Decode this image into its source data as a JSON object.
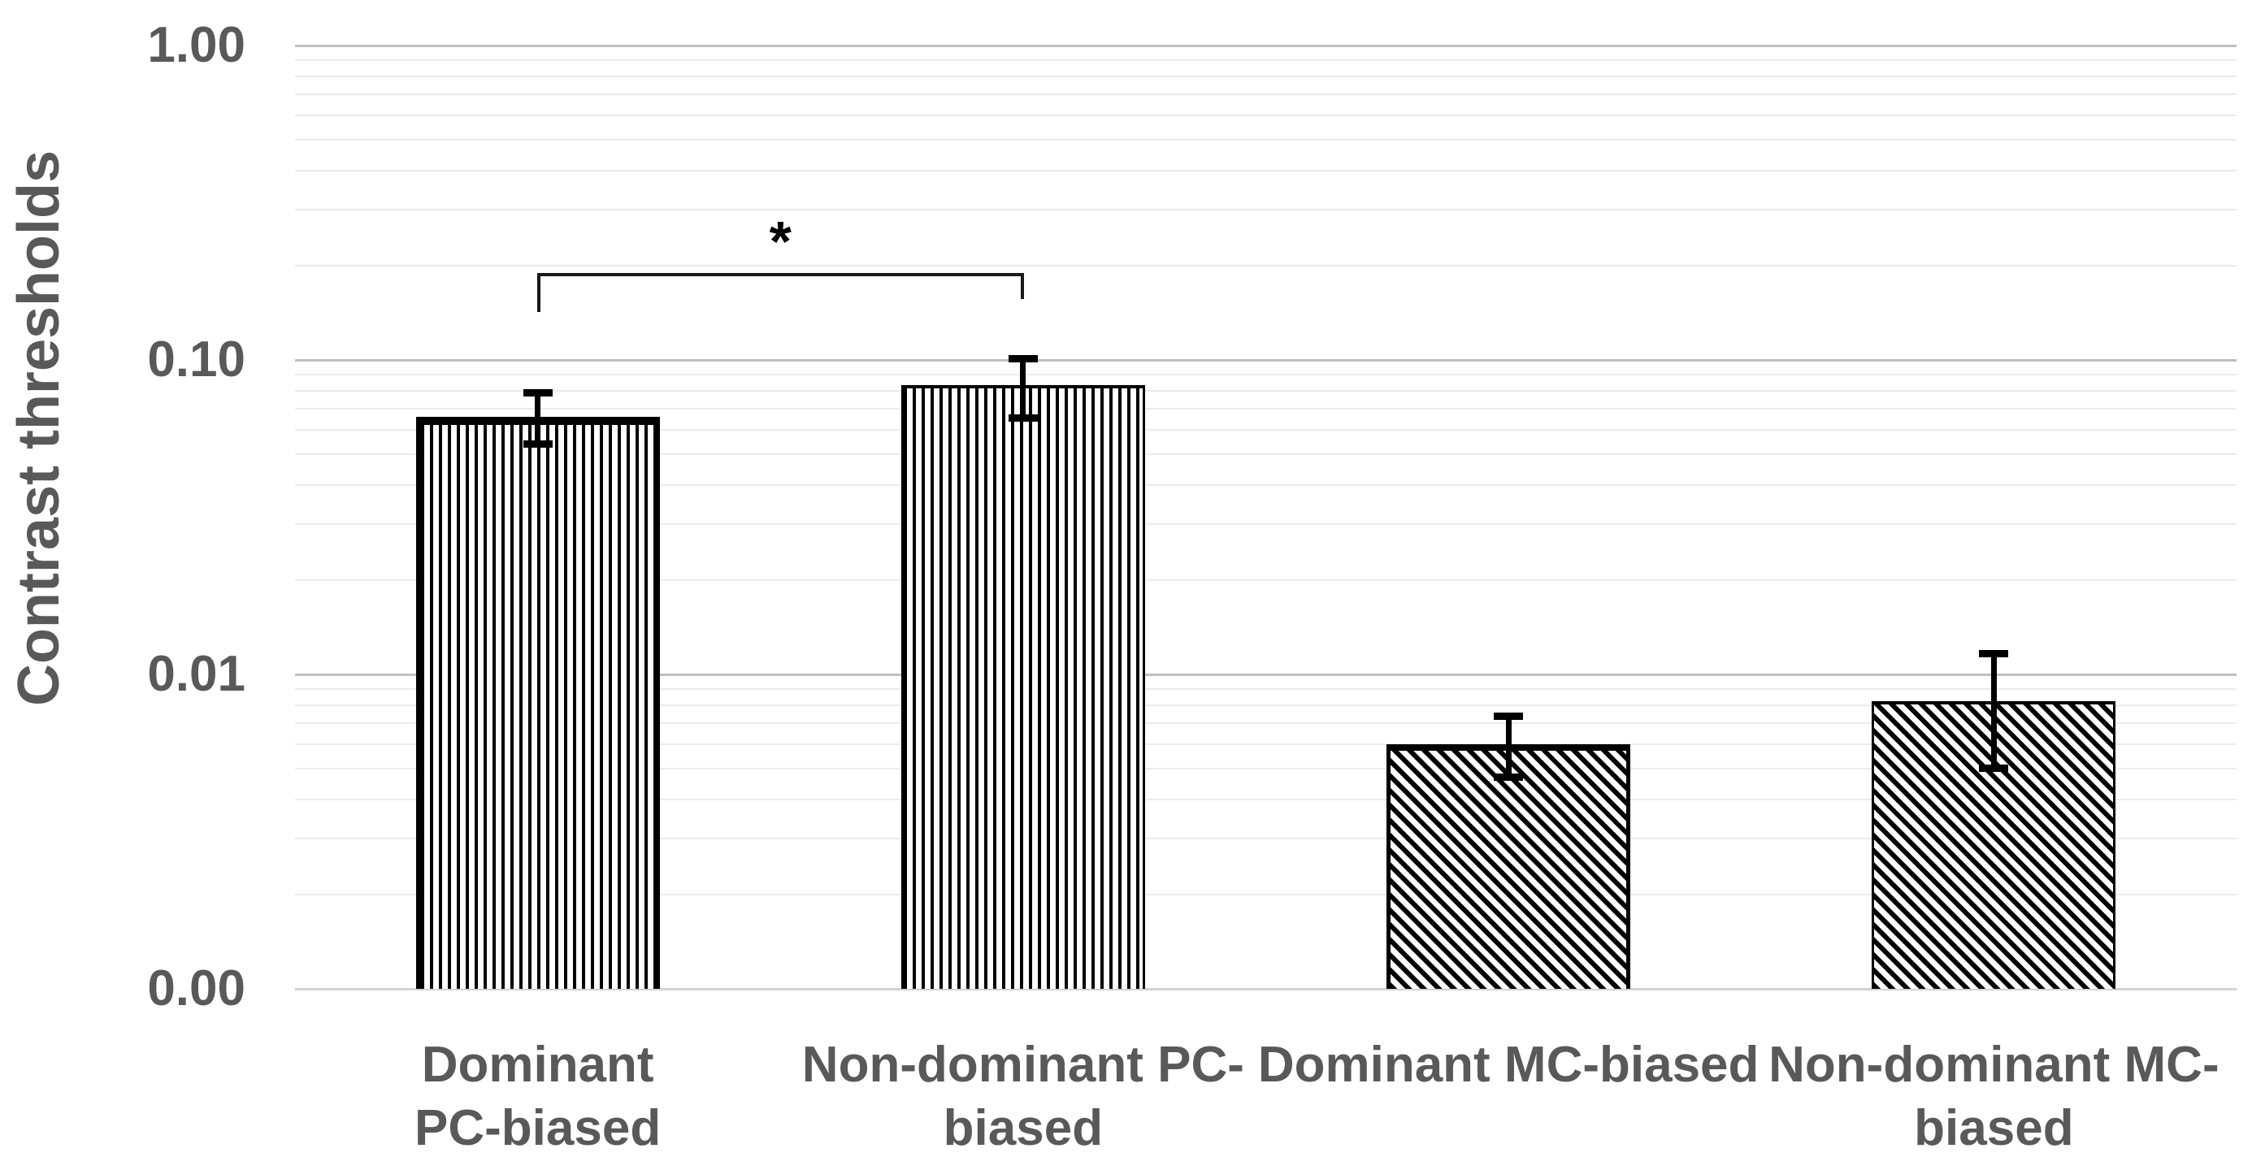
{
  "chart_data": {
    "type": "bar",
    "title": "",
    "ylabel": "Contrast thresholds",
    "xlabel": "",
    "y_axis": {
      "scale": "log",
      "ylim": [
        0.001,
        1.0
      ],
      "ticks": [
        {
          "label": "1.00",
          "value": 1.0
        },
        {
          "label": "0.10",
          "value": 0.1
        },
        {
          "label": "0.01",
          "value": 0.01
        },
        {
          "label": "0.00",
          "value": 0.001
        }
      ],
      "minor_gridlines": true
    },
    "bars": [
      {
        "id": "dominant-pc-biased",
        "label": "Dominant PC-biased",
        "label_lines": [
          "Dominant",
          "PC-biased"
        ],
        "value": 0.066,
        "error_upper_end": 0.079,
        "error_lower_end": 0.054,
        "hatch": "vertical",
        "outline": "thick"
      },
      {
        "id": "non-dominant-pc-biased",
        "label": "Non-dominant PC-biased",
        "label_lines": [
          "Non-dominant PC-",
          "biased"
        ],
        "value": 0.083,
        "error_upper_end": 0.101,
        "error_lower_end": 0.065,
        "hatch": "vertical",
        "outline": "thin"
      },
      {
        "id": "dominant-mc-biased",
        "label": "Dominant MC-biased",
        "label_lines": [
          "Dominant MC-biased"
        ],
        "value": 0.006,
        "error_upper_end": 0.0074,
        "error_lower_end": 0.0047,
        "hatch": "diagonal",
        "outline": "medium"
      },
      {
        "id": "non-dominant-mc-biased",
        "label": "Non-dominant MC-biased",
        "label_lines": [
          "Non-dominant MC-",
          "biased"
        ],
        "value": 0.0082,
        "error_upper_end": 0.0117,
        "error_lower_end": 0.005,
        "hatch": "diagonal",
        "outline": "thin"
      }
    ],
    "significance": {
      "label": "*",
      "between": [
        "dominant-pc-biased",
        "non-dominant-pc-biased"
      ]
    },
    "legend": null,
    "grid": true
  },
  "colors": {
    "text": "#595959",
    "gridline_major": "#bfbfbf",
    "gridline_minor": "#ebebeb",
    "axis_baseline": "#d2d2d2",
    "bar_stroke": "#000000",
    "annotation": "#000000"
  }
}
